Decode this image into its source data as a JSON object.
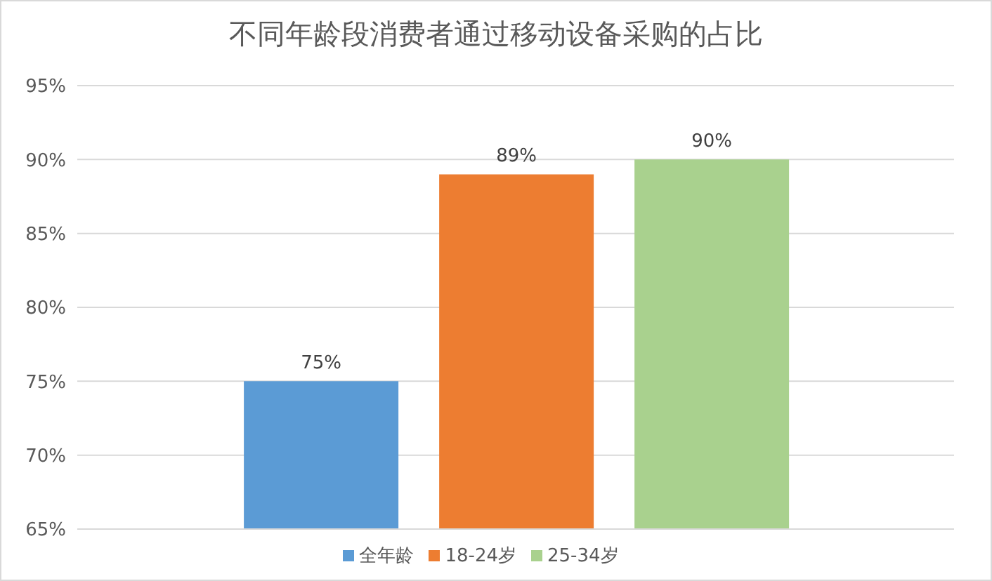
{
  "chart_data": {
    "type": "bar",
    "title": "不同年龄段消费者通过移动设备采购的占比",
    "categories": [
      null
    ],
    "series": [
      {
        "name": "全年龄",
        "color": "#5b9bd5",
        "values": [
          75
        ],
        "value_labels": [
          "75%"
        ]
      },
      {
        "name": "18-24岁",
        "color": "#ed7d31",
        "values": [
          89
        ],
        "value_labels": [
          "89%"
        ]
      },
      {
        "name": "25-34岁",
        "color": "#a9d18e",
        "values": [
          90
        ],
        "value_labels": [
          "90%"
        ]
      }
    ],
    "ylim": [
      65,
      95
    ],
    "yticks": [
      {
        "value": 65,
        "label": "65%"
      },
      {
        "value": 70,
        "label": "70%"
      },
      {
        "value": 75,
        "label": "75%"
      },
      {
        "value": 80,
        "label": "80%"
      },
      {
        "value": 85,
        "label": "85%"
      },
      {
        "value": 90,
        "label": "90%"
      },
      {
        "value": 95,
        "label": "95%"
      }
    ],
    "grid": "y",
    "legend": "bottom"
  }
}
